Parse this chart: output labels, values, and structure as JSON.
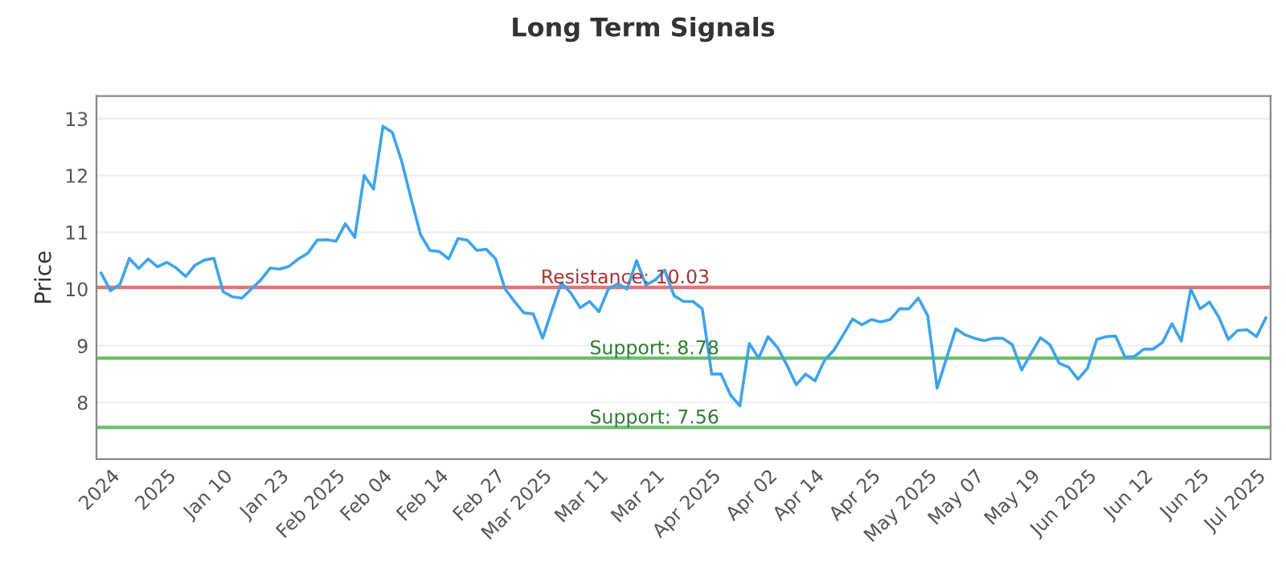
{
  "chart_data": {
    "type": "line",
    "title": "Long Term Signals",
    "ylabel": "Price",
    "categories": [
      null,
      "2024",
      null,
      null,
      null,
      null,
      null,
      "2025",
      null,
      null,
      null,
      null,
      null,
      "Jan 10",
      null,
      null,
      null,
      null,
      null,
      "Jan 23",
      null,
      null,
      null,
      null,
      null,
      "Feb 2025",
      null,
      null,
      null,
      null,
      "Feb 04",
      null,
      null,
      null,
      null,
      null,
      "Feb 14",
      null,
      null,
      null,
      null,
      null,
      "Feb 27",
      null,
      null,
      null,
      null,
      "Mar 2025",
      null,
      null,
      null,
      null,
      null,
      "Mar 11",
      null,
      null,
      null,
      null,
      null,
      "Mar 21",
      null,
      null,
      null,
      null,
      null,
      "Apr 2025",
      null,
      null,
      null,
      null,
      null,
      "Apr 02",
      null,
      null,
      null,
      null,
      "Apr 14",
      null,
      null,
      null,
      null,
      null,
      "Apr 25",
      null,
      null,
      null,
      null,
      null,
      "May 2025",
      null,
      null,
      null,
      null,
      "May 07",
      null,
      null,
      null,
      null,
      null,
      "May 19",
      null,
      null,
      null,
      null,
      null,
      "Jun 2025",
      null,
      null,
      null,
      null,
      null,
      "Jun 12",
      null,
      null,
      null,
      null,
      null,
      "Jun 25",
      null,
      null,
      null,
      null,
      null,
      "Jul 2025",
      null
    ],
    "series": [
      {
        "color": "#3fa3ec",
        "values": [
          10.28,
          9.97,
          10.08,
          10.54,
          10.36,
          10.53,
          10.39,
          10.47,
          10.37,
          10.22,
          10.42,
          10.51,
          10.54,
          9.95,
          9.86,
          9.84,
          10.0,
          10.16,
          10.37,
          10.35,
          10.4,
          10.53,
          10.63,
          10.86,
          10.87,
          10.84,
          11.15,
          10.91,
          12.0,
          11.76,
          12.87,
          12.76,
          12.25,
          11.59,
          10.96,
          10.68,
          10.66,
          10.53,
          10.89,
          10.86,
          10.68,
          10.7,
          10.53,
          10.0,
          9.78,
          9.58,
          9.56,
          9.13,
          9.63,
          10.11,
          9.93,
          9.67,
          9.78,
          9.6,
          10.0,
          10.09,
          10.0,
          10.5,
          10.07,
          10.16,
          10.33,
          9.88,
          9.78,
          9.78,
          9.65,
          8.5,
          8.5,
          8.13,
          7.94,
          9.04,
          8.78,
          9.16,
          8.97,
          8.66,
          8.31,
          8.5,
          8.38,
          8.74,
          8.92,
          9.19,
          9.47,
          9.37,
          9.46,
          9.42,
          9.46,
          9.65,
          9.65,
          9.84,
          9.53,
          8.25,
          8.78,
          9.3,
          9.19,
          9.13,
          9.09,
          9.13,
          9.13,
          9.02,
          8.57,
          8.86,
          9.14,
          9.02,
          8.69,
          8.62,
          8.41,
          8.6,
          9.11,
          9.16,
          9.17,
          8.8,
          8.81,
          8.94,
          8.94,
          9.06,
          9.39,
          9.08,
          10.0,
          9.65,
          9.77,
          9.5,
          9.11,
          9.27,
          9.28,
          9.16,
          9.49
        ]
      }
    ],
    "ylim": [
      7,
      13.4
    ],
    "yticks": [
      8,
      9,
      10,
      11,
      12,
      13
    ],
    "grid": "y",
    "marker": "none",
    "line_style": "solid",
    "ref_lines": [
      {
        "axis": "y",
        "value": 10.03,
        "label": "Resistance: 10.03",
        "color": "#e57373"
      },
      {
        "axis": "y",
        "value": 8.78,
        "label": "Support: 8.78",
        "color": "#6cbf6c"
      },
      {
        "axis": "y",
        "value": 7.56,
        "label": "Support: 7.56",
        "color": "#6cbf6c"
      }
    ]
  }
}
